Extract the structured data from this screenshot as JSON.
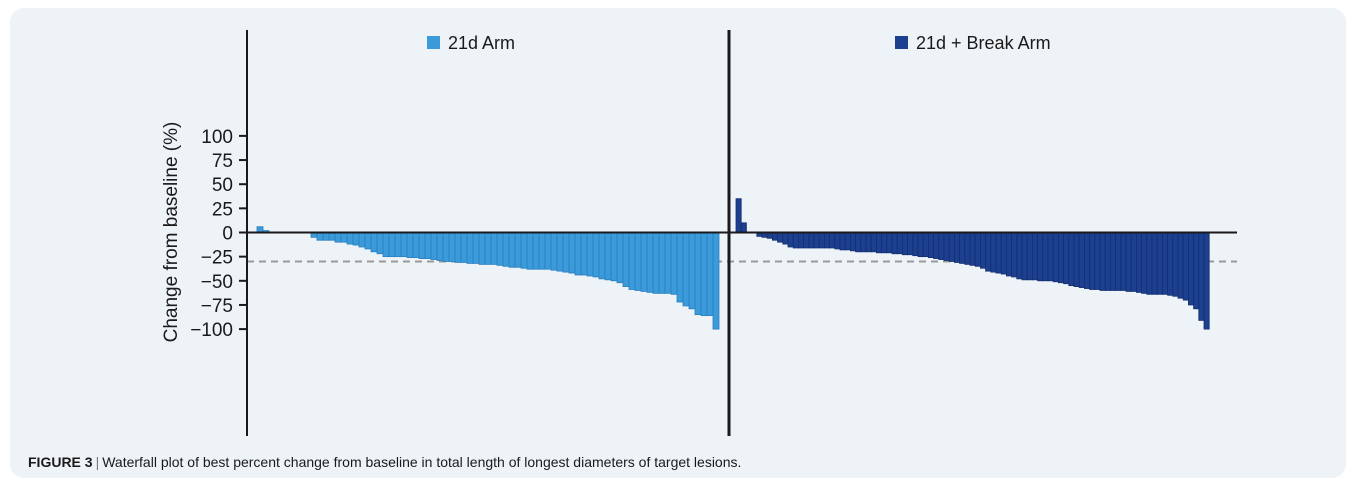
{
  "caption": {
    "label": "FIGURE 3",
    "separator": "|",
    "text": "Waterfall plot of best percent change from baseline in total length of longest diameters of target lesions."
  },
  "chart_data": {
    "type": "bar",
    "ylabel": "Change from baseline (%)",
    "ylim": [
      -105,
      103
    ],
    "yticks": [
      100,
      75,
      50,
      25,
      0,
      -25,
      -50,
      -75,
      -100
    ],
    "ytick_labels": [
      "100",
      "75",
      "50",
      "25",
      "0",
      "−25",
      "−50",
      "−75",
      "−100"
    ],
    "reference_line": {
      "y": -30,
      "style": "dashed",
      "color": "#9a9a9a"
    },
    "colors": {
      "arm1": "#3b9ad9",
      "arm1_edge": "#2a7fbf",
      "arm2": "#1c3f8f",
      "arm2_edge": "#142f70"
    },
    "series": [
      {
        "name": "21d Arm",
        "values": [
          6,
          2,
          0,
          0,
          0,
          0,
          0,
          0,
          0,
          -5,
          -8,
          -8,
          -8,
          -10,
          -10,
          -12,
          -13,
          -15,
          -17,
          -20,
          -22,
          -25,
          -25,
          -25,
          -25,
          -26,
          -26,
          -27,
          -27,
          -28,
          -29,
          -30,
          -30,
          -31,
          -31,
          -32,
          -32,
          -33,
          -33,
          -33,
          -34,
          -35,
          -36,
          -36,
          -37,
          -38,
          -38,
          -38,
          -38,
          -39,
          -40,
          -41,
          -42,
          -44,
          -44,
          -45,
          -46,
          -48,
          -49,
          -50,
          -52,
          -56,
          -59,
          -60,
          -61,
          -62,
          -63,
          -63,
          -63,
          -64,
          -72,
          -76,
          -79,
          -85,
          -86,
          -86,
          -100
        ]
      },
      {
        "name": "21d + Break Arm",
        "values": [
          35,
          10,
          0,
          0,
          -4,
          -5,
          -6,
          -8,
          -10,
          -12,
          -15,
          -16,
          -16,
          -16,
          -16,
          -16,
          -16,
          -16,
          -16,
          -17,
          -18,
          -18,
          -19,
          -20,
          -20,
          -20,
          -20,
          -21,
          -21,
          -21,
          -22,
          -22,
          -23,
          -23,
          -24,
          -25,
          -25,
          -26,
          -27,
          -28,
          -29,
          -30,
          -31,
          -32,
          -33,
          -34,
          -35,
          -37,
          -40,
          -41,
          -42,
          -43,
          -45,
          -46,
          -48,
          -49,
          -49,
          -49,
          -50,
          -50,
          -50,
          -51,
          -52,
          -53,
          -55,
          -56,
          -57,
          -58,
          -59,
          -59,
          -60,
          -60,
          -60,
          -60,
          -60,
          -61,
          -61,
          -62,
          -63,
          -64,
          -64,
          -64,
          -64,
          -65,
          -66,
          -68,
          -70,
          -75,
          -79,
          -91,
          -100
        ]
      }
    ]
  }
}
